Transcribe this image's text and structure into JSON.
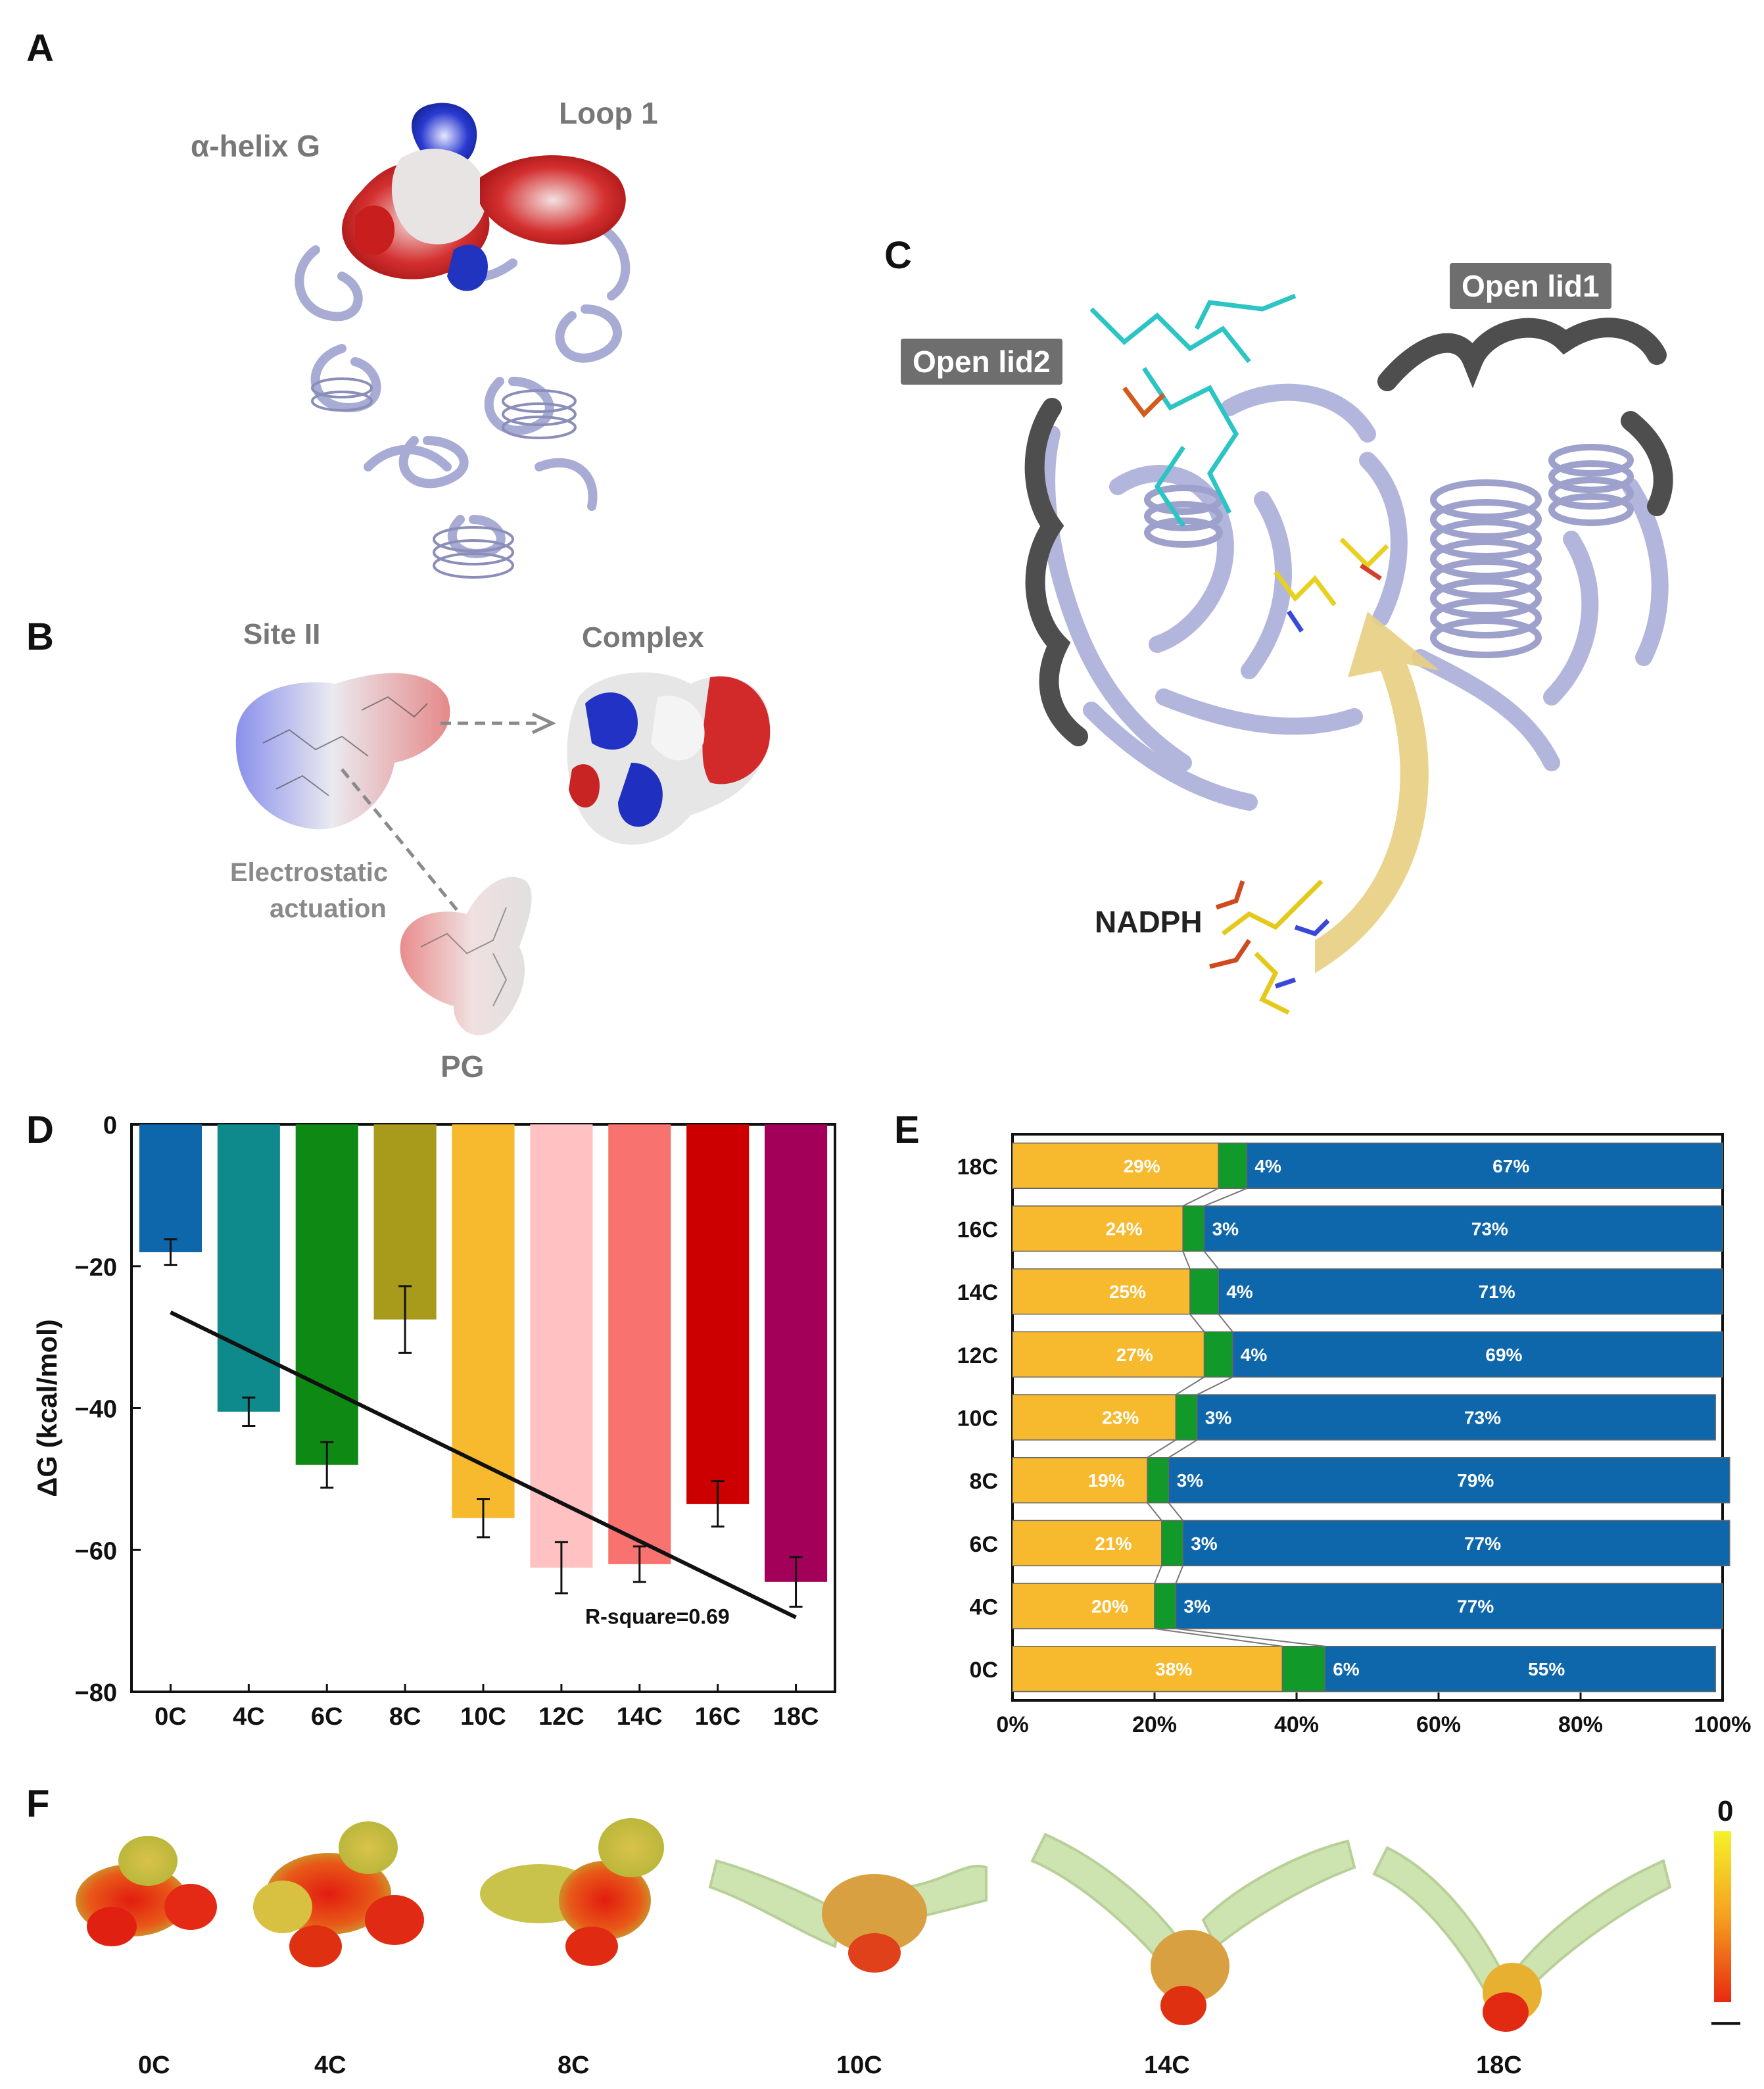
{
  "panels": {
    "A": {
      "letter": "A",
      "label_helix": "α-helix G",
      "label_loop": "Loop 1"
    },
    "B": {
      "letter": "B",
      "label_site": "Site II",
      "label_complex": "Complex",
      "label_electro_1": "Electrostatic",
      "label_electro_2": "actuation",
      "label_pg": "PG"
    },
    "C": {
      "letter": "C",
      "label_lid1": "Open lid1",
      "label_lid2": "Open lid2",
      "label_nadph": "NADPH"
    },
    "D": {
      "letter": "D",
      "r_square": "R-square=0.69"
    },
    "E": {
      "letter": "E"
    },
    "F": {
      "letter": "F",
      "scale_top": "0",
      "scale_bottom": "—",
      "labels": [
        "0C",
        "4C",
        "8C",
        "10C",
        "14C",
        "18C"
      ]
    }
  },
  "colors": {
    "protein": "#b6b9dc",
    "lid": "#505050",
    "positive": "#1f34c9",
    "negative": "#d42020",
    "stack_yellow": "#f7b92d",
    "stack_green": "#119a2a",
    "stack_blue": "#0f67ab",
    "arrow": "#e8cf82"
  },
  "chart_data": [
    {
      "type": "bar",
      "categories": [
        "0C",
        "4C",
        "6C",
        "8C",
        "10C",
        "12C",
        "14C",
        "16C",
        "18C"
      ],
      "values": [
        -18,
        -40.5,
        -48,
        -27.5,
        -55.5,
        -62.5,
        -62,
        -53.5,
        -64.5
      ],
      "errors": [
        1.8,
        2.0,
        3.2,
        4.7,
        2.7,
        3.6,
        2.5,
        3.2,
        3.5
      ],
      "colors": [
        "#0f67ab",
        "#0e8a8c",
        "#0e8a14",
        "#a89a1a",
        "#f7b92d",
        "#ffc1c1",
        "#f87370",
        "#cc0000",
        "#a3005a"
      ],
      "ylabel": "ΔG (kcal/mol)",
      "ylim": [
        -80,
        0
      ],
      "yticks": [
        0,
        -20,
        -40,
        -60,
        -80
      ],
      "trendline": {
        "x_start": "0C",
        "y_start": -26.5,
        "x_end": "18C",
        "y_end": -69.5
      },
      "annotation": "R-square=0.69"
    },
    {
      "type": "bar",
      "orientation": "horizontal-stacked-percent",
      "categories": [
        "18C",
        "16C",
        "14C",
        "12C",
        "10C",
        "8C",
        "6C",
        "4C",
        "0C"
      ],
      "series": [
        {
          "values": [
            29,
            24,
            25,
            27,
            23,
            19,
            21,
            20,
            38
          ],
          "labels": [
            "29%",
            "24%",
            "25%",
            "27%",
            "23%",
            "19%",
            "21%",
            "20%",
            "38%"
          ]
        },
        {
          "values": [
            4,
            3,
            4,
            4,
            3,
            3,
            3,
            3,
            6
          ],
          "labels": [
            "4%",
            "3%",
            "4%",
            "4%",
            "3%",
            "3%",
            "3%",
            "3%",
            "6%"
          ]
        },
        {
          "values": [
            67,
            73,
            71,
            69,
            73,
            79,
            77,
            77,
            55
          ],
          "labels": [
            "67%",
            "73%",
            "71%",
            "69%",
            "73%",
            "79%",
            "77%",
            "77%",
            "55%"
          ]
        }
      ],
      "xticks": [
        "0%",
        "20%",
        "40%",
        "60%",
        "80%",
        "100%"
      ],
      "xlim": [
        0,
        100
      ]
    }
  ]
}
